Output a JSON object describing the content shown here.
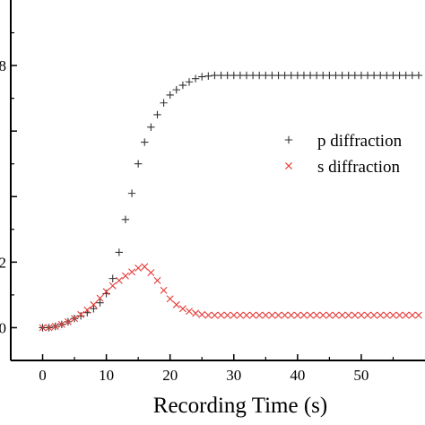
{
  "chart_data": {
    "type": "scatter",
    "title": "",
    "xlabel": "Recording Time (s)",
    "ylabel": "",
    "xlim": [
      -5,
      60
    ],
    "ylim": [
      -0.05,
      0.5
    ],
    "x_ticks": [
      0,
      10,
      20,
      30,
      40,
      50
    ],
    "y_ticks": [
      0,
      0.1,
      0.2,
      0.3,
      0.4
    ],
    "y_tick_labels": [
      "0",
      "2",
      "",
      "",
      "8"
    ],
    "grid": false,
    "legend_position": "right",
    "series": [
      {
        "name": "p diffraction",
        "marker": "plus",
        "color": "#333333",
        "x": [
          0,
          1,
          2,
          3,
          4,
          5,
          6,
          7,
          8,
          9,
          10,
          11,
          12,
          13,
          14,
          15,
          16,
          17,
          18,
          19,
          20,
          21,
          22,
          23,
          24,
          25,
          26,
          27,
          28,
          29,
          30,
          31,
          32,
          33,
          34,
          35,
          36,
          37,
          38,
          39,
          40,
          41,
          42,
          43,
          44,
          45,
          46,
          47,
          48,
          49,
          50,
          51,
          52,
          53,
          54,
          55,
          56,
          57,
          58,
          59
        ],
        "y": [
          0.0,
          0.0,
          0.002,
          0.005,
          0.009,
          0.014,
          0.018,
          0.023,
          0.029,
          0.038,
          0.052,
          0.075,
          0.115,
          0.165,
          0.205,
          0.25,
          0.283,
          0.306,
          0.325,
          0.343,
          0.355,
          0.363,
          0.37,
          0.375,
          0.38,
          0.383,
          0.384,
          0.385,
          0.385,
          0.385,
          0.385,
          0.385,
          0.385,
          0.385,
          0.385,
          0.385,
          0.385,
          0.385,
          0.385,
          0.385,
          0.385,
          0.385,
          0.385,
          0.385,
          0.385,
          0.385,
          0.385,
          0.385,
          0.385,
          0.385,
          0.385,
          0.385,
          0.385,
          0.385,
          0.385,
          0.385,
          0.385,
          0.385,
          0.385,
          0.385
        ]
      },
      {
        "name": "s diffraction",
        "marker": "cross",
        "color": "#e53935",
        "x": [
          0,
          1,
          2,
          3,
          4,
          5,
          6,
          7,
          8,
          9,
          10,
          11,
          12,
          13,
          14,
          15,
          16,
          17,
          18,
          19,
          20,
          21,
          22,
          23,
          24,
          25,
          26,
          27,
          28,
          29,
          30,
          31,
          32,
          33,
          34,
          35,
          36,
          37,
          38,
          39,
          40,
          41,
          42,
          43,
          44,
          45,
          46,
          47,
          48,
          49,
          50,
          51,
          52,
          53,
          54,
          55,
          56,
          57,
          58,
          59
        ],
        "y": [
          0.0,
          0.0,
          0.002,
          0.005,
          0.009,
          0.014,
          0.02,
          0.027,
          0.035,
          0.045,
          0.055,
          0.064,
          0.072,
          0.079,
          0.085,
          0.091,
          0.093,
          0.084,
          0.072,
          0.057,
          0.044,
          0.035,
          0.029,
          0.025,
          0.022,
          0.02,
          0.019,
          0.019,
          0.019,
          0.019,
          0.019,
          0.019,
          0.019,
          0.019,
          0.019,
          0.019,
          0.019,
          0.019,
          0.019,
          0.019,
          0.019,
          0.019,
          0.019,
          0.019,
          0.019,
          0.019,
          0.019,
          0.019,
          0.019,
          0.019,
          0.019,
          0.019,
          0.019,
          0.019,
          0.019,
          0.019,
          0.019,
          0.019,
          0.019,
          0.019
        ]
      }
    ]
  }
}
